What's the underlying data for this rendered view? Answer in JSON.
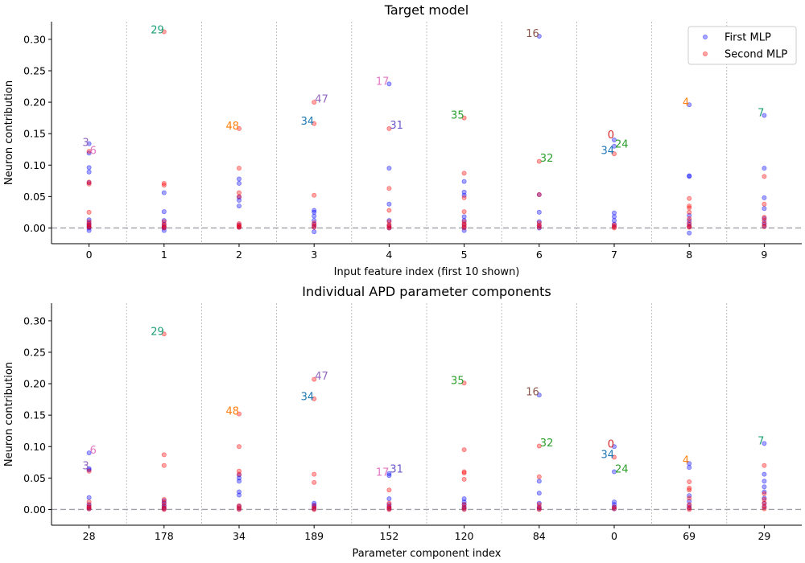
{
  "legend": [
    {
      "label": "First MLP",
      "color": "#0000ff"
    },
    {
      "label": "Second MLP",
      "color": "#ff0000"
    }
  ],
  "annotation_palette": [
    "#1f77b4",
    "#ff7f0e",
    "#2ca02c",
    "#d62728",
    "#9467bd",
    "#8c564b",
    "#e377c2",
    "#1b9e77",
    "#6a5acd"
  ],
  "chart_data": [
    {
      "type": "scatter",
      "title": "Target model",
      "xlabel": "Input feature index (first 10 shown)",
      "ylabel": "Neuron contribution",
      "ylim": [
        -0.025,
        0.328
      ],
      "yticks": [
        0.0,
        0.05,
        0.1,
        0.15,
        0.2,
        0.25,
        0.3
      ],
      "ytick_labels": [
        "0.00",
        "0.05",
        "0.10",
        "0.15",
        "0.20",
        "0.25",
        "0.30"
      ],
      "categories": [
        "0",
        "1",
        "2",
        "3",
        "4",
        "5",
        "6",
        "7",
        "8",
        "9"
      ],
      "series": [
        {
          "name": "First MLP",
          "values": [
            [
              0.134,
              0.119,
              0.096,
              0.089,
              0.072,
              0.013,
              0.008,
              0.005,
              0.002,
              0.0,
              -0.004
            ],
            [
              0.056,
              0.026,
              0.012,
              0.006,
              0.002,
              0.0,
              -0.004
            ],
            [
              0.078,
              0.071,
              0.049,
              0.044,
              0.035,
              0.005,
              0.001
            ],
            [
              0.028,
              0.025,
              0.019,
              0.012,
              0.006,
              0.002,
              -0.006
            ],
            [
              0.229,
              0.095,
              0.038,
              0.012,
              0.004,
              0.0
            ],
            [
              0.074,
              0.057,
              0.052,
              0.018,
              0.012,
              0.006,
              0.001,
              -0.004
            ],
            [
              0.305,
              0.053,
              0.025,
              0.01,
              0.004,
              0.0
            ],
            [
              0.14,
              0.13,
              0.024,
              0.018,
              0.012,
              0.006,
              0.002
            ],
            [
              0.196,
              0.083,
              0.082,
              0.02,
              0.012,
              0.006,
              0.002,
              -0.008
            ],
            [
              0.179,
              0.095,
              0.048,
              0.031,
              0.015,
              0.008,
              0.003
            ]
          ]
        },
        {
          "name": "Second MLP",
          "values": [
            [
              0.122,
              0.073,
              0.07,
              0.025,
              0.01,
              0.006,
              0.003,
              0.001
            ],
            [
              0.312,
              0.071,
              0.068,
              0.01,
              0.005,
              0.002,
              0.0
            ],
            [
              0.158,
              0.095,
              0.056,
              0.05,
              0.007,
              0.004,
              0.002,
              0.001
            ],
            [
              0.2,
              0.166,
              0.052,
              0.008,
              0.004,
              0.001
            ],
            [
              0.158,
              0.063,
              0.028,
              0.01,
              0.005,
              0.002,
              0.0
            ],
            [
              0.175,
              0.087,
              0.048,
              0.026,
              0.01,
              0.006,
              0.003,
              0.0
            ],
            [
              0.106,
              0.053,
              0.008,
              0.004,
              0.001
            ],
            [
              0.118,
              0.005,
              0.002,
              0.0
            ],
            [
              0.047,
              0.035,
              0.032,
              0.025,
              0.015,
              0.008,
              0.003,
              0.001
            ],
            [
              0.082,
              0.038,
              0.017,
              0.012,
              0.006,
              0.002
            ]
          ]
        }
      ],
      "annotations": [
        {
          "text": "3",
          "x": 0,
          "y": 0.137,
          "color": "#9467bd"
        },
        {
          "text": "6",
          "x": 0,
          "y": 0.124,
          "color": "#e377c2"
        },
        {
          "text": "29",
          "x": 1,
          "y": 0.316,
          "color": "#1b9e77"
        },
        {
          "text": "48",
          "x": 2,
          "y": 0.163,
          "color": "#ff7f0e"
        },
        {
          "text": "34",
          "x": 3,
          "y": 0.171,
          "color": "#1f77b4"
        },
        {
          "text": "47",
          "x": 3,
          "y": 0.206,
          "color": "#9467bd"
        },
        {
          "text": "17",
          "x": 4,
          "y": 0.234,
          "color": "#e377c2"
        },
        {
          "text": "31",
          "x": 4,
          "y": 0.164,
          "color": "#6a5acd"
        },
        {
          "text": "35",
          "x": 5,
          "y": 0.18,
          "color": "#2ca02c"
        },
        {
          "text": "16",
          "x": 6,
          "y": 0.31,
          "color": "#8c564b"
        },
        {
          "text": "32",
          "x": 6,
          "y": 0.112,
          "color": "#2ca02c"
        },
        {
          "text": "0",
          "x": 7,
          "y": 0.149,
          "color": "#d62728"
        },
        {
          "text": "24",
          "x": 7,
          "y": 0.134,
          "color": "#2ca02c"
        },
        {
          "text": "34",
          "x": 7,
          "y": 0.124,
          "color": "#1f77b4"
        },
        {
          "text": "4",
          "x": 8,
          "y": 0.201,
          "color": "#ff7f0e"
        },
        {
          "text": "7",
          "x": 9,
          "y": 0.184,
          "color": "#1b9e77"
        }
      ]
    },
    {
      "type": "scatter",
      "title": "Individual APD parameter components",
      "xlabel": "Parameter component index",
      "ylabel": "Neuron contribution",
      "ylim": [
        -0.025,
        0.328
      ],
      "yticks": [
        0.0,
        0.05,
        0.1,
        0.15,
        0.2,
        0.25,
        0.3
      ],
      "ytick_labels": [
        "0.00",
        "0.05",
        "0.10",
        "0.15",
        "0.20",
        "0.25",
        "0.30"
      ],
      "categories": [
        "28",
        "178",
        "34",
        "189",
        "152",
        "120",
        "84",
        "0",
        "69",
        "29"
      ],
      "series": [
        {
          "name": "First MLP",
          "values": [
            [
              0.09,
              0.065,
              0.063,
              0.019,
              0.008,
              0.004,
              0.001
            ],
            [
              0.014,
              0.01,
              0.006,
              0.003,
              0.001
            ],
            [
              0.055,
              0.05,
              0.045,
              0.028,
              0.023,
              0.005,
              0.001
            ],
            [
              0.01,
              0.007,
              0.004,
              0.001
            ],
            [
              0.057,
              0.054,
              0.017,
              0.008,
              0.004,
              0.001
            ],
            [
              0.017,
              0.012,
              0.008,
              0.004,
              0.001
            ],
            [
              0.182,
              0.045,
              0.026,
              0.01,
              0.004,
              0.001
            ],
            [
              0.1,
              0.06,
              0.012,
              0.008,
              0.004,
              0.001
            ],
            [
              0.073,
              0.067,
              0.022,
              0.013,
              0.006,
              0.002
            ],
            [
              0.105,
              0.056,
              0.045,
              0.036,
              0.028,
              0.018,
              0.01,
              0.004
            ]
          ]
        },
        {
          "name": "Second MLP",
          "values": [
            [
              0.061,
              0.012,
              0.006,
              0.003,
              0.001
            ],
            [
              0.279,
              0.087,
              0.07,
              0.016,
              0.011,
              0.006,
              0.002,
              0.0
            ],
            [
              0.152,
              0.1,
              0.061,
              0.056,
              0.006,
              0.003,
              0.0
            ],
            [
              0.207,
              0.176,
              0.056,
              0.043,
              0.006,
              0.002,
              0.0
            ],
            [
              0.031,
              0.01,
              0.005,
              0.002,
              0.0
            ],
            [
              0.201,
              0.095,
              0.06,
              0.058,
              0.048,
              0.008,
              0.003,
              0.0
            ],
            [
              0.101,
              0.052,
              0.008,
              0.003,
              0.0
            ],
            [
              0.083,
              0.004,
              0.001
            ],
            [
              0.044,
              0.034,
              0.031,
              0.018,
              0.008,
              0.003,
              0.0
            ],
            [
              0.07,
              0.025,
              0.016,
              0.01,
              0.005,
              0.001
            ]
          ]
        }
      ],
      "annotations": [
        {
          "text": "3",
          "x": 0,
          "y": 0.07,
          "color": "#9467bd"
        },
        {
          "text": "6",
          "x": 0,
          "y": 0.095,
          "color": "#e377c2"
        },
        {
          "text": "29",
          "x": 1,
          "y": 0.284,
          "color": "#1b9e77"
        },
        {
          "text": "48",
          "x": 2,
          "y": 0.157,
          "color": "#ff7f0e"
        },
        {
          "text": "34",
          "x": 3,
          "y": 0.18,
          "color": "#1f77b4"
        },
        {
          "text": "47",
          "x": 3,
          "y": 0.213,
          "color": "#9467bd"
        },
        {
          "text": "17",
          "x": 4,
          "y": 0.06,
          "color": "#e377c2"
        },
        {
          "text": "31",
          "x": 4,
          "y": 0.065,
          "color": "#6a5acd"
        },
        {
          "text": "35",
          "x": 5,
          "y": 0.206,
          "color": "#2ca02c"
        },
        {
          "text": "16",
          "x": 6,
          "y": 0.188,
          "color": "#8c564b"
        },
        {
          "text": "32",
          "x": 6,
          "y": 0.107,
          "color": "#2ca02c"
        },
        {
          "text": "0",
          "x": 7,
          "y": 0.105,
          "color": "#d62728"
        },
        {
          "text": "24",
          "x": 7,
          "y": 0.065,
          "color": "#2ca02c"
        },
        {
          "text": "34",
          "x": 7,
          "y": 0.088,
          "color": "#1f77b4"
        },
        {
          "text": "4",
          "x": 8,
          "y": 0.079,
          "color": "#ff7f0e"
        },
        {
          "text": "7",
          "x": 9,
          "y": 0.11,
          "color": "#1b9e77"
        }
      ]
    }
  ]
}
